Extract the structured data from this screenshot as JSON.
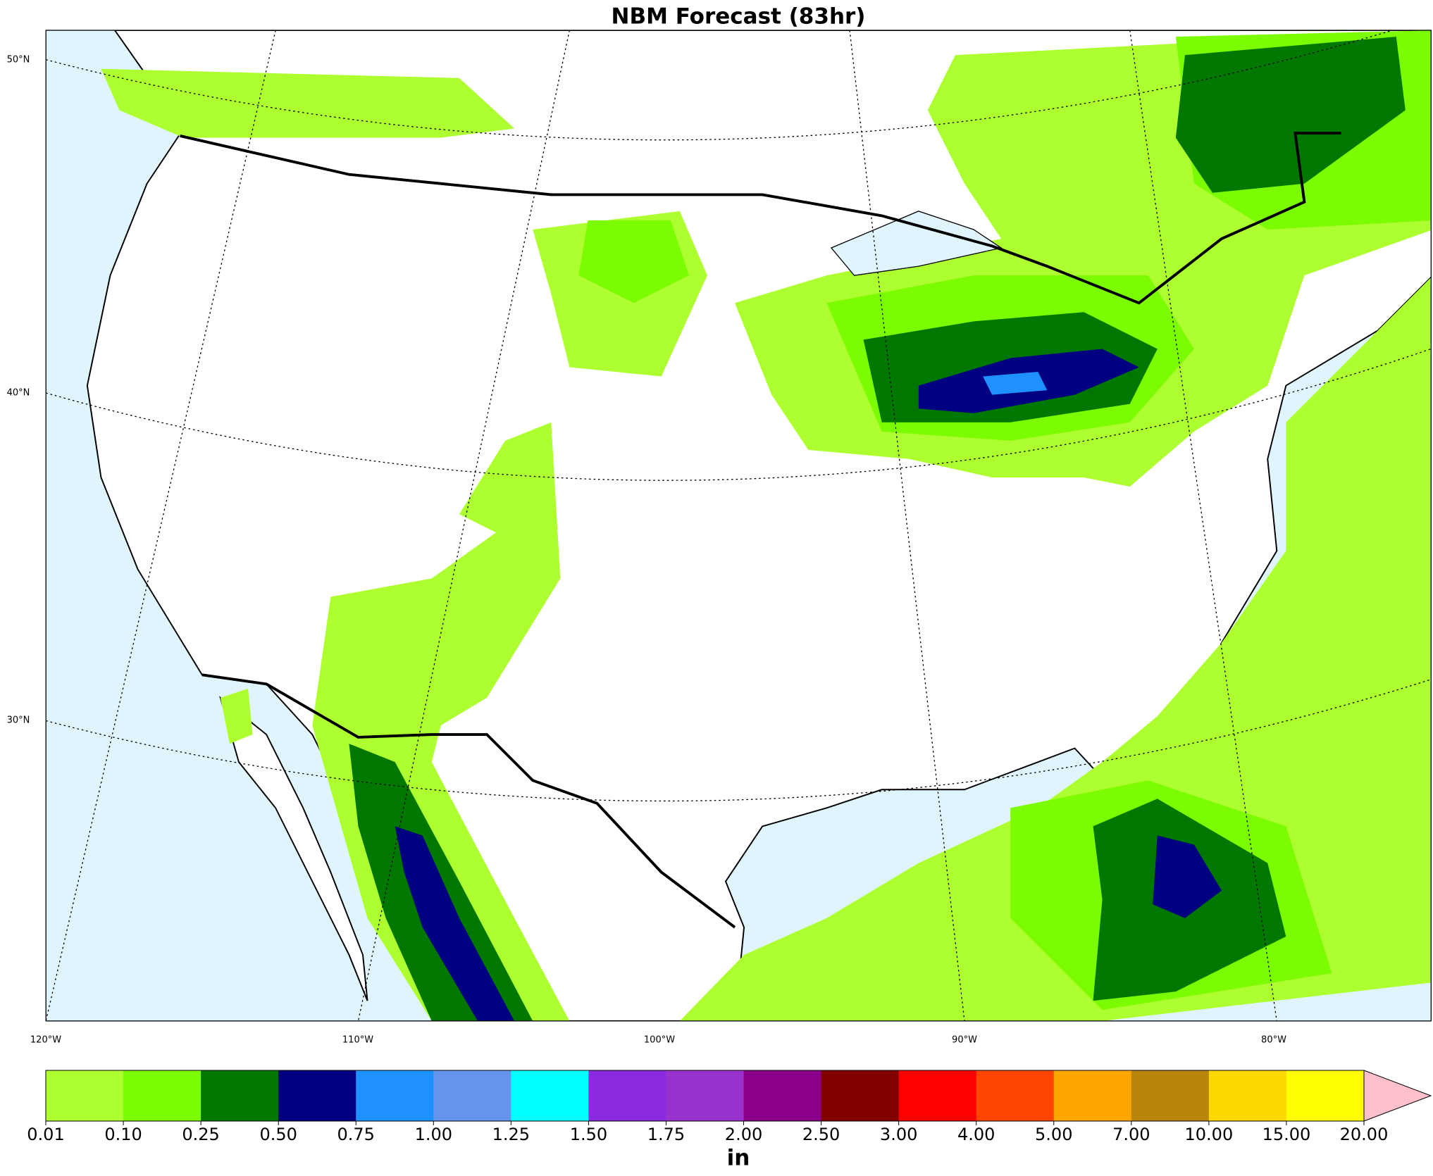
{
  "title": "NBM Forecast (83hr)",
  "map": {
    "lat_labels": [
      "50°N",
      "40°N",
      "30°N"
    ],
    "lon_labels": [
      "120°W",
      "110°W",
      "100°W",
      "90°W",
      "80°W"
    ]
  },
  "colorbar": {
    "ticks": [
      0.01,
      {
        "value": 0.1,
        "label": "0.10"
      },
      0.25,
      {
        "value": 0.5,
        "label": "0.50"
      },
      0.75,
      {
        "value": 1,
        "label": "1.00"
      },
      1.25,
      {
        "value": 1.5,
        "label": "1.50"
      },
      1.75,
      {
        "value": 2,
        "label": "2.00"
      },
      {
        "value": 2.5,
        "label": "2.50"
      },
      {
        "value": 3,
        "label": "3.00"
      },
      {
        "value": 4,
        "label": "4.00"
      },
      {
        "value": 5,
        "label": "5.00"
      },
      {
        "value": 7,
        "label": "7.00"
      },
      {
        "value": 10,
        "label": "10.00"
      },
      {
        "value": 15,
        "label": "15.00"
      },
      {
        "value": 20,
        "label": "20.00"
      }
    ],
    "colors": [
      "#adff2f",
      "#7cfc00",
      "#007800",
      "#000080",
      "#1e90ff",
      "#6495ed",
      "#00ffff",
      "#8a2be2",
      "#9932cc",
      "#8b008b",
      "#800000",
      "#ff0000",
      "#ff4500",
      "#ffa500",
      "#b8860b",
      "#ffd700",
      "#ffff00"
    ],
    "extend_color": "#ffc0cb",
    "label": "in"
  }
}
